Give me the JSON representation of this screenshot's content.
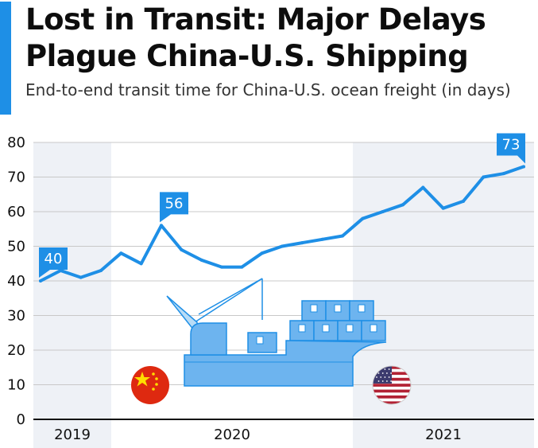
{
  "title": "Lost in Transit: Major Delays Plague China-U.S. Shipping",
  "subtitle": "End-to-end transit time for China-U.S. ocean freight (in days)",
  "colors": {
    "accent": "#1e8fe6",
    "line": "#1e8fe6",
    "band_shade": "#eef1f6",
    "ship_fill": "#6db4ef",
    "ship_stroke": "#1e8fe6",
    "china_flag": "#de2910",
    "china_star": "#ffde00",
    "us_flag_red": "#b22234",
    "us_flag_blue": "#3c3b6e"
  },
  "icons": [
    "cargo-ship-icon",
    "china-flag-icon",
    "us-flag-icon"
  ],
  "chart_data": {
    "type": "line",
    "title": "Lost in Transit: Major Delays Plague China-U.S. Shipping",
    "subtitle": "End-to-end transit time for China-U.S. ocean freight (in days)",
    "ylim": [
      0,
      80
    ],
    "yticks": [
      0,
      10,
      20,
      30,
      40,
      50,
      60,
      70,
      80
    ],
    "grid": true,
    "year_bands": [
      "2019",
      "2020",
      "2021"
    ],
    "series": [
      {
        "values": [
          40,
          43,
          41,
          43,
          48,
          45,
          56,
          49,
          46,
          44,
          44,
          48,
          50,
          51,
          52,
          53,
          58,
          60,
          62,
          67,
          61,
          63,
          70,
          71,
          73
        ]
      }
    ],
    "callouts": [
      {
        "index": 0,
        "label": "40"
      },
      {
        "index": 6,
        "label": "56"
      },
      {
        "index": 24,
        "label": "73"
      }
    ]
  }
}
